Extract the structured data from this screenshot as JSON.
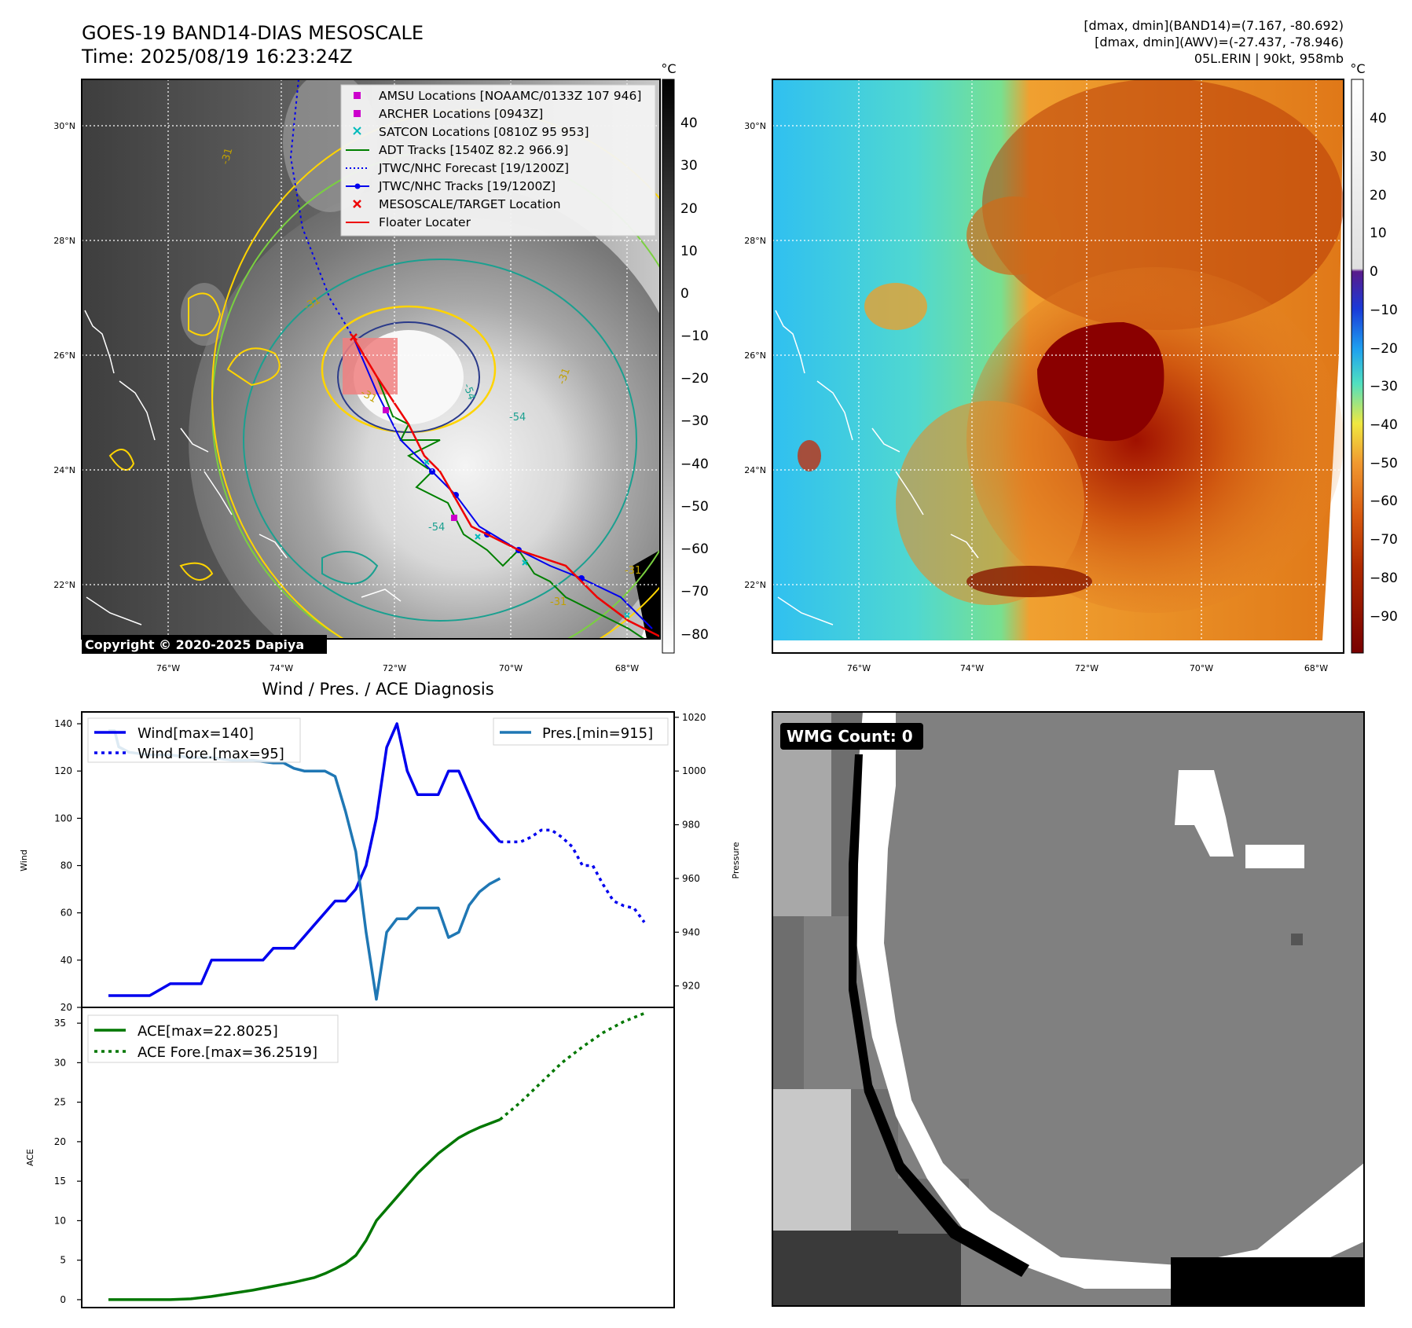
{
  "header": {
    "title_line1": "GOES-19 BAND14-DIAS MESOSCALE",
    "title_line2": "Time: 2025/08/19 16:23:24Z",
    "info_line1": "[dmax, dmin](BAND14)=(7.167, -80.692)",
    "info_line2": "[dmax, dmin](AWV)=(-27.437, -78.946)",
    "info_line3": "05L.ERIN | 90kt, 958mb"
  },
  "maps": {
    "lat_labels": [
      "30°N",
      "28°N",
      "26°N",
      "24°N",
      "22°N"
    ],
    "lon_labels": [
      "76°W",
      "74°W",
      "72°W",
      "70°W",
      "68°W"
    ],
    "copyright": "Copyright © 2020-2025 Dapiya",
    "colorbar_unit": "°C",
    "gray_ticks": [
      "40",
      "30",
      "20",
      "10",
      "0",
      "−10",
      "−20",
      "−30",
      "−40",
      "−50",
      "−60",
      "−70",
      "−80"
    ],
    "color_ticks": [
      "40",
      "30",
      "20",
      "10",
      "0",
      "−10",
      "−20",
      "−30",
      "−40",
      "−50",
      "−60",
      "−70",
      "−80",
      "−90"
    ],
    "legend": [
      "AMSU Locations [NOAAMC/0133Z 107 946]",
      "ARCHER Locations [0943Z]",
      "SATCON Locations [0810Z 95 953]",
      "ADT Tracks [1540Z 82.2 966.9]",
      "JTWC/NHC Forecast [19/1200Z]",
      "JTWC/NHC Tracks [19/1200Z]",
      "MESOSCALE/TARGET Location",
      "Floater Locater"
    ],
    "contour_labels": [
      "-54",
      "-54",
      "-54",
      "-31",
      "-31",
      "-31",
      "-31",
      "-31",
      "-31"
    ],
    "colors": {
      "wind": "#0000ee",
      "pressure": "#1f77b4",
      "ace": "#007700",
      "adt": "#008000",
      "floater": "#ee0000",
      "amsu": "#cc00cc",
      "satcon": "#00bbbb"
    }
  },
  "wmg": {
    "label": "WMG Count: 0"
  },
  "chart_data": [
    {
      "type": "line",
      "title": "Wind / Pres. / ACE Diagnosis",
      "ylabel": "Wind",
      "ylabel_right": "Pressure",
      "ylim": [
        20,
        145
      ],
      "ylim_right": [
        912,
        1022
      ],
      "yticks": [
        20,
        40,
        60,
        80,
        100,
        120,
        140
      ],
      "yticks_right": [
        920,
        940,
        960,
        980,
        1000,
        1020
      ],
      "legend_left": [
        "Wind[max=140]",
        "Wind Fore.[max=95]"
      ],
      "legend_right": [
        "Pres.[min=915]"
      ],
      "series": [
        {
          "name": "Wind[max=140]",
          "axis": "left",
          "style": "solid",
          "x": [
            0,
            2,
            4,
            6,
            7,
            9,
            10,
            11,
            12,
            14,
            15,
            16,
            17,
            18,
            19,
            20,
            21,
            22,
            23,
            24,
            25,
            26,
            27,
            28,
            29,
            30,
            32,
            33,
            34,
            35,
            36,
            38
          ],
          "y": [
            25,
            25,
            25,
            30,
            30,
            30,
            40,
            40,
            40,
            40,
            40,
            45,
            45,
            45,
            50,
            55,
            60,
            65,
            65,
            70,
            80,
            100,
            130,
            140,
            120,
            110,
            110,
            120,
            120,
            110,
            100,
            90
          ]
        },
        {
          "name": "Wind Fore.[max=95]",
          "axis": "left",
          "style": "dotted",
          "x": [
            38,
            40,
            41,
            42,
            43,
            44,
            45,
            46,
            47,
            48,
            49,
            50,
            51,
            52
          ],
          "y": [
            90,
            90,
            92,
            95,
            95,
            92,
            88,
            80,
            80,
            72,
            65,
            63,
            62,
            56
          ]
        },
        {
          "name": "Pres.[min=915]",
          "axis": "right",
          "style": "solid",
          "x": [
            0,
            0.6,
            1,
            2,
            4,
            6,
            8,
            10,
            12,
            14,
            16,
            17,
            18,
            19,
            20,
            21,
            22,
            23,
            24,
            25,
            26,
            27,
            28,
            29,
            30,
            31,
            32,
            33,
            34,
            35,
            36,
            37,
            38
          ],
          "y": [
            1015,
            1015,
            1009,
            1007,
            1006,
            1006,
            1005,
            1005,
            1004,
            1004,
            1003,
            1003,
            1001,
            1000,
            1000,
            1000,
            998,
            985,
            970,
            940,
            915,
            940,
            945,
            945,
            949,
            949,
            949,
            938,
            940,
            950,
            955,
            958,
            960
          ]
        }
      ]
    },
    {
      "type": "line",
      "ylabel": "ACE",
      "ylim": [
        -1,
        37
      ],
      "yticks": [
        0,
        5,
        10,
        15,
        20,
        25,
        30,
        35
      ],
      "series": [
        {
          "name": "ACE[max=22.8025]",
          "style": "solid",
          "x": [
            0,
            2,
            4,
            6,
            8,
            10,
            12,
            14,
            16,
            18,
            20,
            21,
            22,
            23,
            24,
            25,
            26,
            28,
            30,
            32,
            34,
            35,
            36,
            37,
            38
          ],
          "y": [
            0,
            0,
            0,
            0,
            0.1,
            0.4,
            0.8,
            1.2,
            1.7,
            2.2,
            2.8,
            3.3,
            3.9,
            4.6,
            5.6,
            7.5,
            10,
            13,
            16,
            18.5,
            20.5,
            21.2,
            21.8,
            22.3,
            22.8
          ]
        },
        {
          "name": "ACE Fore.[max=36.2519]",
          "style": "dotted",
          "x": [
            38,
            40,
            42,
            44,
            46,
            48,
            50,
            52
          ],
          "y": [
            22.8,
            25,
            27.5,
            30,
            32,
            33.8,
            35.2,
            36.25
          ]
        }
      ]
    }
  ]
}
